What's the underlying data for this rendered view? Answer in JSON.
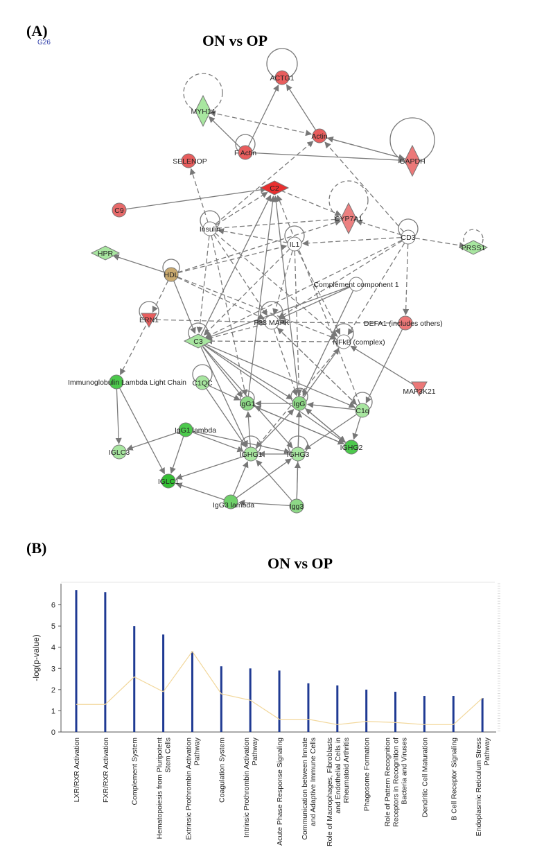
{
  "panel_a": {
    "label": "(A)",
    "tag": "G26",
    "title": "ON vs OP",
    "nodes": [
      {
        "id": "ACTG1",
        "label": "ACTG1",
        "color": "#e85d5d",
        "shape": "circle"
      },
      {
        "id": "MYH14",
        "label": "MYH14",
        "color": "#a8e6a0",
        "shape": "diamond"
      },
      {
        "id": "Actin",
        "label": "Actin",
        "color": "#e85d5d",
        "shape": "circle"
      },
      {
        "id": "FActin",
        "label": "F Actin",
        "color": "#e85d5d",
        "shape": "circle"
      },
      {
        "id": "GAPDH",
        "label": "GAPDH",
        "color": "#ec7878",
        "shape": "diamond"
      },
      {
        "id": "SELENOP",
        "label": "SELENOP",
        "color": "#e85d5d",
        "shape": "circle"
      },
      {
        "id": "C2",
        "label": "C2",
        "color": "#e83030",
        "shape": "diamond"
      },
      {
        "id": "C9",
        "label": "C9",
        "color": "#e86a6a",
        "shape": "circle"
      },
      {
        "id": "CYP7A1",
        "label": "CYP7A1",
        "color": "#ec8080",
        "shape": "diamond"
      },
      {
        "id": "Insulin",
        "label": "Insulin",
        "color": "#ffffff",
        "shape": "circle"
      },
      {
        "id": "IL1",
        "label": "IL1",
        "color": "#ffffff",
        "shape": "circle"
      },
      {
        "id": "CD3",
        "label": "CD3",
        "color": "#ffffff",
        "shape": "circle"
      },
      {
        "id": "PRSS1",
        "label": "PRSS1",
        "color": "#a8e6a0",
        "shape": "diamond"
      },
      {
        "id": "HPR",
        "label": "HPR",
        "color": "#a8e6a0",
        "shape": "diamond"
      },
      {
        "id": "HDL",
        "label": "HDL",
        "color": "#c9a96e",
        "shape": "circle"
      },
      {
        "id": "CC1",
        "label": "Complement component 1",
        "color": "#ffffff",
        "shape": "circle"
      },
      {
        "id": "ERN1",
        "label": "ERN1",
        "color": "#e85d5d",
        "shape": "triangle"
      },
      {
        "id": "P38",
        "label": "P38 MAPK",
        "color": "#ffffff",
        "shape": "circle"
      },
      {
        "id": "DEFA1",
        "label": "DEFA1 (includes others)",
        "color": "#ec7878",
        "shape": "circle"
      },
      {
        "id": "C3",
        "label": "C3",
        "color": "#a8e6a0",
        "shape": "diamond"
      },
      {
        "id": "NFKB",
        "label": "NFkB (complex)",
        "color": "#ffffff",
        "shape": "circle"
      },
      {
        "id": "MAP3K21",
        "label": "MAP3K21",
        "color": "#ec7878",
        "shape": "triangle"
      },
      {
        "id": "IgLL",
        "label": "Immunoglobulin Lambda Light Chain",
        "color": "#4cc94c",
        "shape": "circle"
      },
      {
        "id": "C1QC",
        "label": "C1QC",
        "color": "#a8e6a0",
        "shape": "circle"
      },
      {
        "id": "IgG1",
        "label": "IgG1",
        "color": "#8ed987",
        "shape": "circle"
      },
      {
        "id": "IgG",
        "label": "IgG",
        "color": "#8ed987",
        "shape": "circle"
      },
      {
        "id": "C1q",
        "label": "C1q",
        "color": "#a8e6a0",
        "shape": "circle"
      },
      {
        "id": "IgG1L",
        "label": "IgG1 lambda",
        "color": "#4cc94c",
        "shape": "circle"
      },
      {
        "id": "IGLC3",
        "label": "IGLC3",
        "color": "#a8e6a0",
        "shape": "circle"
      },
      {
        "id": "IGHG1",
        "label": "IGHG1",
        "color": "#a8e6a0",
        "shape": "circle"
      },
      {
        "id": "IGHG3",
        "label": "IGHG3",
        "color": "#a8e6a0",
        "shape": "circle"
      },
      {
        "id": "IGHG2",
        "label": "IGHG2",
        "color": "#4cc94c",
        "shape": "circle"
      },
      {
        "id": "IGLC1",
        "label": "IGLC1",
        "color": "#33c033",
        "shape": "circle"
      },
      {
        "id": "IgG3L",
        "label": "IgG3 lambda",
        "color": "#6fd06a",
        "shape": "circle"
      },
      {
        "id": "Igg3",
        "label": "Igg3",
        "color": "#8ed987",
        "shape": "circle"
      }
    ]
  },
  "panel_b": {
    "label": "(B)",
    "title": "ON vs OP",
    "chart_data": {
      "type": "bar",
      "ylabel": "-log(p-value)",
      "ylim": [
        0,
        7
      ],
      "yticks": [
        0,
        1,
        2,
        3,
        4,
        5,
        6
      ],
      "categories": [
        "LXR/RXR Activation",
        "FXR/RXR Activation",
        "Complement System",
        "Hematopoiesis from Pluripotent Stem Cells",
        "Extrinsic Prothrombin Activation Pathway",
        "Coagulation System",
        "Intrinsic Prothrombin Activation Pathway",
        "Acute Phase Response Signaling",
        "Communication between Innate and Adaptive Immune Cells",
        "Role of Macrophages, Fibroblasts and Endothelial Cells in Rheumatoid Arthritis",
        "Phagosome Formation",
        "Role of Pattern Recognition Receptors in Recognition of Bacteria and Viruses",
        "Dendritic Cell Maturation",
        "B Cell Receptor Signaling",
        "Endoplasmic Reticulum Stress Pathway"
      ],
      "category_lines": [
        [
          "LXR/RXR Activation"
        ],
        [
          "FXR/RXR Activation"
        ],
        [
          "Complement System"
        ],
        [
          "Hematopoiesis from Pluripotent",
          "Stem Cells"
        ],
        [
          "Extrinsic Prothrombin Activation",
          "Pathway"
        ],
        [
          "Coagulation System"
        ],
        [
          "Intrinsic Prothrombin Activation",
          "Pathway"
        ],
        [
          "Acute Phase Response Signaling"
        ],
        [
          "Communication between Innate",
          "and Adaptive Immune Cells"
        ],
        [
          "Role of Macrophages, Fibroblasts",
          "and Endothelial Cells in",
          "Rheumatoid Arthritis"
        ],
        [
          "Phagosome Formation"
        ],
        [
          "Role of Pattern Recognition",
          "Receptors in Recognition of",
          "Bacteria and Viruses"
        ],
        [
          "Dendritic Cell Maturation"
        ],
        [
          "B Cell Receptor Signaling"
        ],
        [
          "Endoplasmic Reticulum Stress",
          "Pathway"
        ]
      ],
      "values": [
        6.7,
        6.6,
        5.0,
        4.6,
        3.8,
        3.1,
        3.0,
        2.9,
        2.3,
        2.2,
        2.0,
        1.9,
        1.7,
        1.7,
        1.6
      ],
      "ratio_line": [
        1.3,
        1.3,
        2.6,
        1.9,
        3.8,
        1.8,
        1.5,
        0.6,
        0.6,
        0.35,
        0.5,
        0.45,
        0.35,
        0.35,
        1.6
      ],
      "bar_color": "#1f3a93",
      "line_color": "#f2d79a"
    }
  }
}
